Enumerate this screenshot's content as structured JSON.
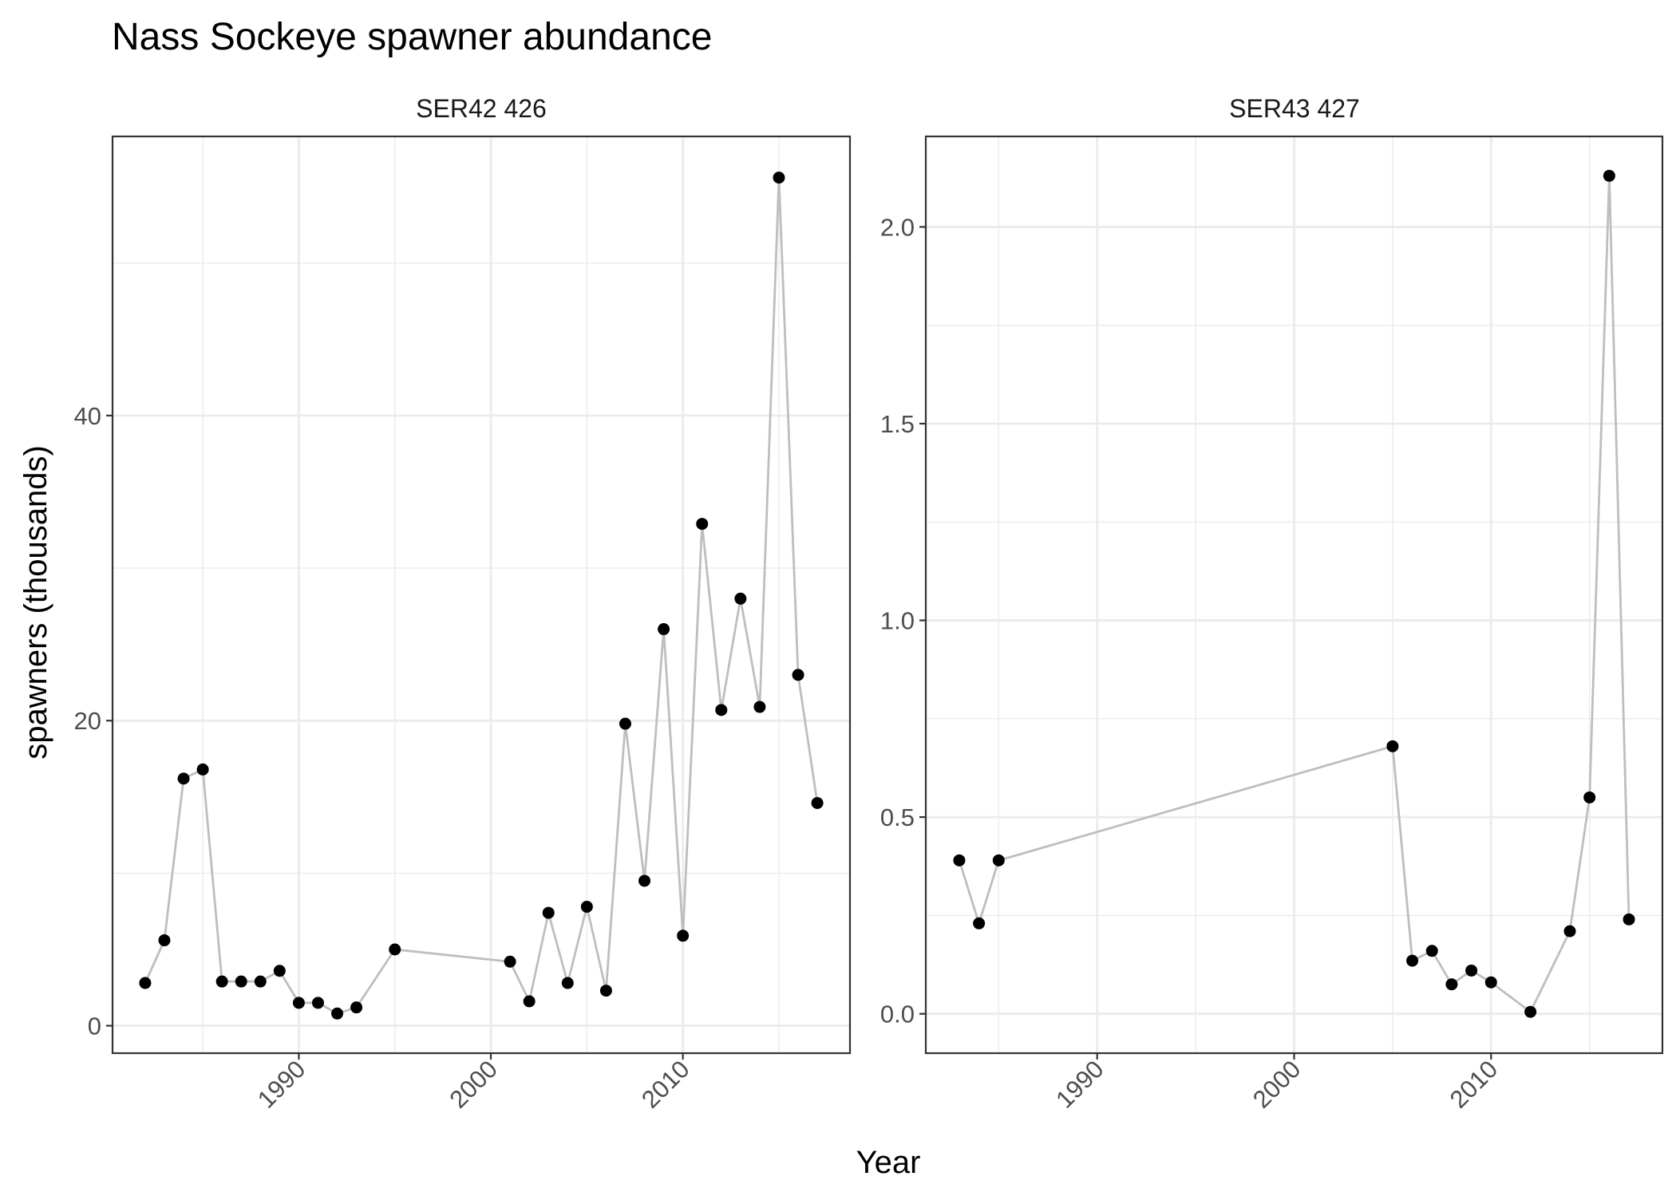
{
  "title": "Nass Sockeye spawner abundance",
  "xlabel": "Year",
  "ylabel": "spawners (thousands)",
  "colors": {
    "line": "#bebebe",
    "point": "#000000",
    "grid": "#ebebeb",
    "panel_border": "#333333",
    "tick_text": "#4d4d4d"
  },
  "chart_data": [
    {
      "type": "line",
      "title": "SER42 426",
      "x_ticks": [
        1990,
        2000,
        2010
      ],
      "y_ticks": [
        0,
        20,
        40
      ],
      "xlim": [
        1980.3,
        2018.7
      ],
      "ylim": [
        -1.8,
        58.3
      ],
      "grid": true,
      "series": [
        {
          "x": [
            1982,
            1983,
            1984,
            1985,
            1986,
            1987,
            1988,
            1989,
            1990,
            1991,
            1992,
            1993,
            1995,
            2001,
            2002,
            2003,
            2004,
            2005,
            2006,
            2007,
            2008,
            2009,
            2010,
            2011,
            2012,
            2013,
            2014,
            2015,
            2016,
            2017
          ],
          "y": [
            2.8,
            5.6,
            16.2,
            16.8,
            2.9,
            2.9,
            2.9,
            3.6,
            1.5,
            1.5,
            0.8,
            1.2,
            5.0,
            4.2,
            1.6,
            7.4,
            2.8,
            7.8,
            2.3,
            19.8,
            9.5,
            26.0,
            5.9,
            32.9,
            20.7,
            28.0,
            20.9,
            55.6,
            23.0,
            14.6
          ]
        }
      ]
    },
    {
      "type": "line",
      "title": "SER43 427",
      "x_ticks": [
        1990,
        2000,
        2010
      ],
      "y_ticks": [
        0.0,
        0.5,
        1.0,
        1.5,
        2.0
      ],
      "xlim": [
        1981.3,
        2018.7
      ],
      "ylim": [
        -0.1,
        2.23
      ],
      "grid": true,
      "series": [
        {
          "x": [
            1983,
            1984,
            1985,
            2005,
            2006,
            2007,
            2008,
            2009,
            2010,
            2012,
            2014,
            2015,
            2016,
            2017
          ],
          "y": [
            0.39,
            0.23,
            0.39,
            0.68,
            0.135,
            0.16,
            0.075,
            0.11,
            0.08,
            0.005,
            0.21,
            0.55,
            2.13,
            0.24
          ]
        }
      ]
    }
  ]
}
